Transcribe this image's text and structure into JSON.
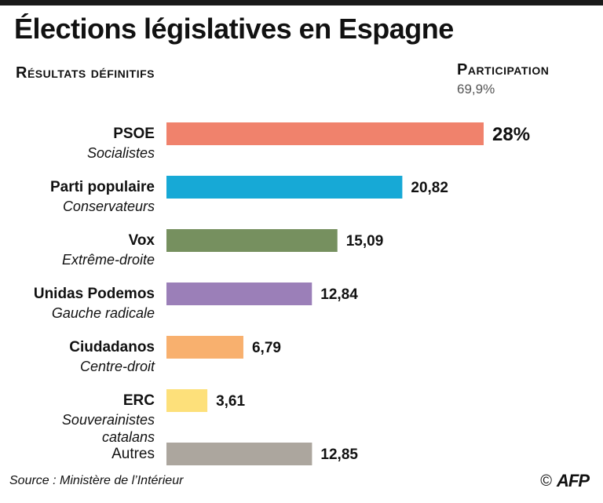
{
  "header": {
    "title": "Élections législatives en Espagne",
    "subtitle": "Résultats définitifs"
  },
  "participation": {
    "label": "Participation",
    "value": "69,9%"
  },
  "chart_data": {
    "type": "bar",
    "orientation": "horizontal",
    "title": "Élections législatives en Espagne",
    "subtitle": "Résultats définitifs",
    "xlim": [
      0,
      28
    ],
    "grid": false,
    "categories": [
      "PSOE",
      "Parti populaire",
      "Vox",
      "Unidas Podemos",
      "Ciudadanos",
      "ERC",
      "Autres"
    ],
    "sublabels": [
      [
        "Socialistes"
      ],
      [
        "Conservateurs"
      ],
      [
        "Extrême-droite"
      ],
      [
        "Gauche radicale"
      ],
      [
        "Centre-droit"
      ],
      [
        "Souverainistes",
        "catalans"
      ],
      []
    ],
    "values": [
      28,
      20.82,
      15.09,
      12.84,
      6.79,
      3.61,
      12.85
    ],
    "value_labels": [
      "28%",
      "20,82",
      "15,09",
      "12,84",
      "6,79",
      "3,61",
      "12,85"
    ],
    "colors": [
      "#f0826c",
      "#17a9d6",
      "#76905f",
      "#9b7fb8",
      "#f8b06e",
      "#fde07a",
      "#aca69e"
    ]
  },
  "footer": {
    "source": "Source : Ministère de l’Intérieur",
    "copyright": "©",
    "agency": "AFP"
  }
}
